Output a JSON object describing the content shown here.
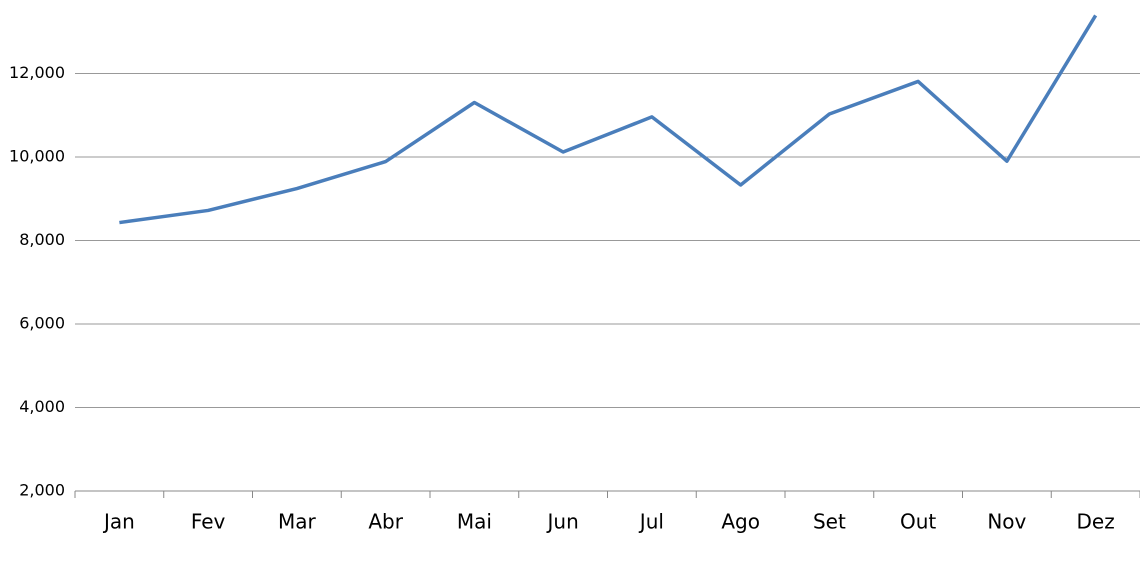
{
  "chart_data": {
    "type": "line",
    "categories": [
      "Jan",
      "Fev",
      "Mar",
      "Abr",
      "Mai",
      "Jun",
      "Jul",
      "Ago",
      "Set",
      "Out",
      "Nov",
      "Dez"
    ],
    "values": [
      8430,
      8720,
      9245,
      9890,
      11305,
      10120,
      10960,
      9330,
      11030,
      11810,
      9900,
      13390
    ],
    "color": "#4a7ebb",
    "ylim": [
      2000,
      14000
    ],
    "yticks": [
      {
        "value": 2000,
        "label": "2,000"
      },
      {
        "value": 4000,
        "label": "4,000"
      },
      {
        "value": 6000,
        "label": "6,000"
      },
      {
        "value": 8000,
        "label": "8,000"
      },
      {
        "value": 10000,
        "label": "10,000"
      },
      {
        "value": 12000,
        "label": "12,000"
      }
    ],
    "grid": true
  }
}
